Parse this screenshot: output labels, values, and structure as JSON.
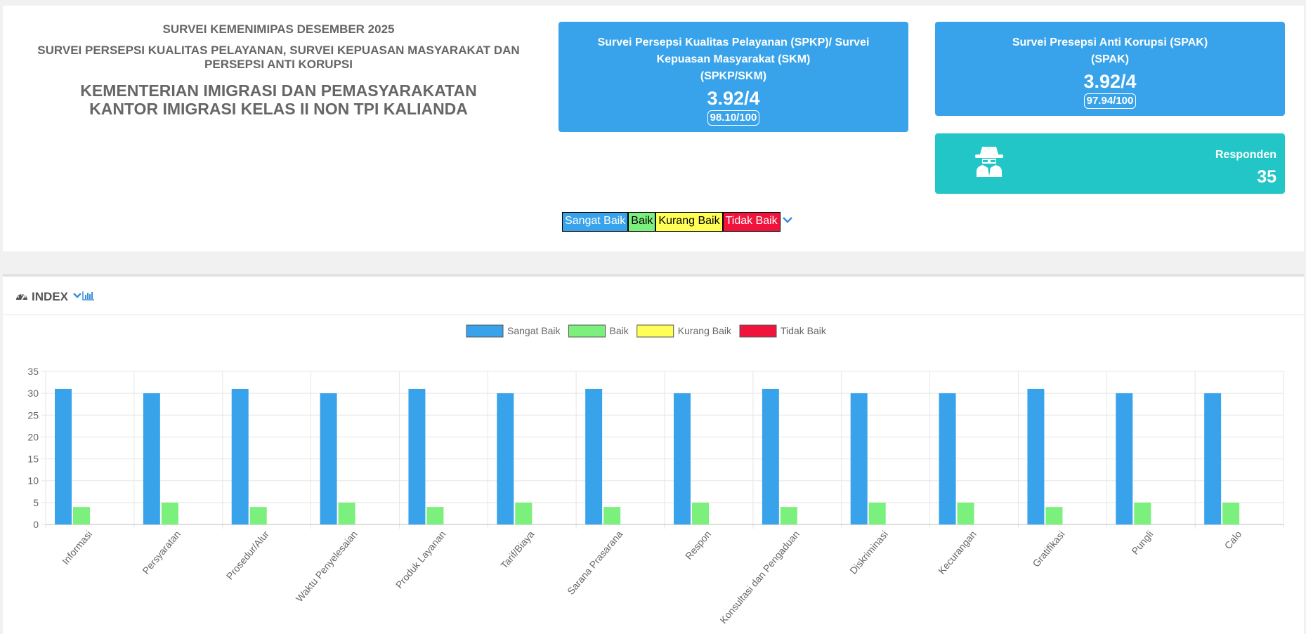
{
  "header": {
    "survey_period": "SURVEI KEMENIMIPAS DESEMBER 2025",
    "survey_name": "SURVEI PERSEPSI KUALITAS PELAYANAN, SURVEI KEPUASAN MASYARAKAT DAN PERSEPSI ANTI KORUPSI",
    "ministry": "KEMENTERIAN IMIGRASI DAN PEMASYARAKATAN",
    "office": "KANTOR IMIGRASI KELAS II NON TPI KALIANDA"
  },
  "spkp_card": {
    "line1": "Survei Persepsi Kualitas Pelayanan (SPKP)/ Survei",
    "line2": "Kepuasan Masyarakat (SKM)",
    "line3": "(SPKP/SKM)",
    "score": "3.92/4",
    "percent": "98.10/100",
    "color": "#38a3ea"
  },
  "spak_card": {
    "line1": "Survei Presepsi Anti Korupsi (SPAK)",
    "line2": "(SPAK)",
    "score": "3.92/4",
    "percent": "97.94/100",
    "color": "#38a3ea"
  },
  "respondent_card": {
    "label": "Responden",
    "value": "35",
    "icon": "spy-icon",
    "color": "#22c6c6"
  },
  "legend_key": {
    "items": [
      {
        "label": "Sangat Baik",
        "bg": "#38a3ea",
        "fg": "#ffffff"
      },
      {
        "label": "Baik",
        "bg": "#7cf07c",
        "fg": "#000000"
      },
      {
        "label": "Kurang Baik",
        "bg": "#ffff55",
        "fg": "#000000"
      },
      {
        "label": "Tidak Baik",
        "bg": "#f0143c",
        "fg": "#ffffff"
      }
    ],
    "toggle_icon": "chevron-down-icon"
  },
  "index_panel": {
    "title": "INDEX",
    "icons": [
      "dashboard-icon",
      "chevron-down-icon",
      "bar-chart-icon"
    ]
  },
  "chart_data": {
    "type": "bar",
    "categories": [
      "Informasi",
      "Persyaratan",
      "Prosedur/Alur",
      "Waktu Penyelesaian",
      "Produk Layanan",
      "Tarif/Biaya",
      "Sarana Prasarana",
      "Respon",
      "Konsultasi dan Pengaduan",
      "Diskriminasi",
      "Kecurangan",
      "Gratifikasi",
      "Pungli",
      "Calo"
    ],
    "series": [
      {
        "name": "Sangat Baik",
        "color": "#38a3ea",
        "values": [
          31,
          30,
          31,
          30,
          31,
          30,
          31,
          30,
          31,
          30,
          30,
          31,
          30,
          30
        ]
      },
      {
        "name": "Baik",
        "color": "#7cf07c",
        "values": [
          4,
          5,
          4,
          5,
          4,
          5,
          4,
          5,
          4,
          5,
          5,
          4,
          5,
          5
        ]
      },
      {
        "name": "Kurang Baik",
        "color": "#ffff55",
        "values": [
          0,
          0,
          0,
          0,
          0,
          0,
          0,
          0,
          0,
          0,
          0,
          0,
          0,
          0
        ]
      },
      {
        "name": "Tidak Baik",
        "color": "#f0143c",
        "values": [
          0,
          0,
          0,
          0,
          0,
          0,
          0,
          0,
          0,
          0,
          0,
          0,
          0,
          0
        ]
      }
    ],
    "ylim": [
      0,
      35
    ],
    "yticks": [
      0,
      5,
      10,
      15,
      20,
      25,
      30,
      35
    ],
    "grid": true,
    "legend_position": "top"
  }
}
